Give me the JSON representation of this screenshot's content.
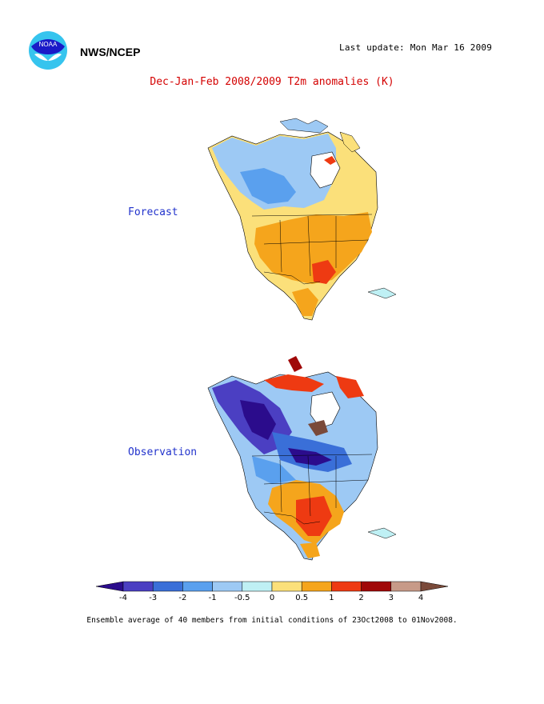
{
  "header": {
    "agency": "NWS/NCEP",
    "last_update": "Last update: Mon Mar 16 2009",
    "logo_icon": "noaa-logo-icon"
  },
  "title": "Dec-Jan-Feb 2008/2009 T2m anomalies (K)",
  "panels": [
    {
      "label": "Forecast"
    },
    {
      "label": "Observation"
    }
  ],
  "colorbar": {
    "ticks": [
      "-4",
      "-3",
      "-2",
      "-1",
      "-0.5",
      "0",
      "0.5",
      "1",
      "2",
      "3",
      "4"
    ],
    "colors": [
      "#2b0c8c",
      "#4b3fc2",
      "#3a6fd8",
      "#5aa0ee",
      "#9dc9f4",
      "#bff0f4",
      "#fbe07a",
      "#f5a51c",
      "#ee3a12",
      "#a00808",
      "#c79a88",
      "#7a4a3a"
    ]
  },
  "footnote": "Ensemble average of 40 members from initial conditions of 23Oct2008 to 01Nov2008."
}
